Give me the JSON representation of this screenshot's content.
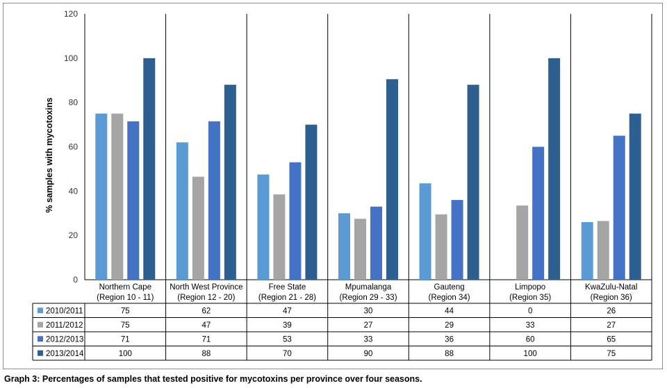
{
  "caption": "Graph 3: Percentages of samples that tested positive for mycotoxins per province over four seasons.",
  "chart_data": {
    "type": "bar",
    "ylabel": "% samples with mycotoxins",
    "xlabel": "",
    "ylim": [
      0,
      120
    ],
    "yticks": [
      0,
      20,
      40,
      60,
      80,
      100,
      120
    ],
    "grid": false,
    "legend": "data-table-left",
    "categories": [
      [
        "Northern Cape",
        "(Region 10 - 11)"
      ],
      [
        "North West Province",
        "(Region 12 - 20)"
      ],
      [
        "Free State",
        "(Region 21 - 28)"
      ],
      [
        "Mpumalanga",
        "(Region 29 - 33)"
      ],
      [
        "Gauteng",
        "(Region 34)"
      ],
      [
        "Limpopo",
        "(Region 35)"
      ],
      [
        "KwaZulu-Natal",
        "(Region 36)"
      ]
    ],
    "series": [
      {
        "name": "2010/2011",
        "color": "#5b9bd5",
        "values": [
          75,
          62,
          47,
          30,
          44,
          0,
          26
        ]
      },
      {
        "name": "2011/2012",
        "color": "#a5a5a5",
        "values": [
          75,
          47,
          39,
          27,
          29,
          33,
          27
        ]
      },
      {
        "name": "2012/2013",
        "color": "#4472c4",
        "values": [
          71,
          71,
          53,
          33,
          36,
          60,
          65
        ]
      },
      {
        "name": "2013/2014",
        "color": "#2e5f91",
        "values": [
          100,
          88,
          70,
          90,
          88,
          100,
          75
        ]
      }
    ],
    "bar_values": [
      [
        75,
        75,
        71.5,
        100
      ],
      [
        62,
        46.5,
        71.5,
        88
      ],
      [
        47.5,
        38.5,
        53,
        70
      ],
      [
        30,
        27.5,
        33,
        90.5
      ],
      [
        43.5,
        29.5,
        36,
        88
      ],
      [
        0,
        33.5,
        60,
        100
      ],
      [
        26,
        26.5,
        65,
        75
      ]
    ]
  }
}
